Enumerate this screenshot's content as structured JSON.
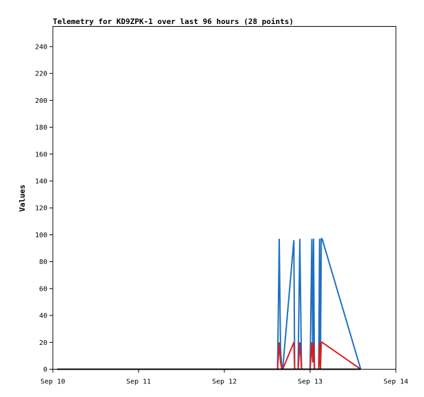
{
  "chart_data": {
    "type": "line",
    "title": "Telemetry for KD9ZPK-1 over last 96 hours (28 points)",
    "xlabel": "",
    "ylabel": "Values",
    "x_ticks": [
      "Sep 10",
      "Sep 11",
      "Sep 12",
      "Sep 13",
      "Sep 14"
    ],
    "xlim": [
      0,
      4
    ],
    "ylim": [
      0,
      255
    ],
    "y_ticks": [
      0,
      20,
      40,
      60,
      80,
      100,
      120,
      140,
      160,
      180,
      200,
      220,
      240
    ],
    "grid": false,
    "x": [
      0.05,
      2.6,
      2.62,
      2.63,
      2.64,
      2.655,
      2.67,
      2.68,
      2.81,
      2.82,
      2.86,
      2.88,
      2.9,
      2.91,
      3.0,
      3.02,
      3.03,
      3.04,
      3.05,
      3.06,
      3.08,
      3.09,
      3.1,
      3.11,
      3.12,
      3.13,
      3.14,
      3.59
    ],
    "series": [
      {
        "color": "#1f6fbf",
        "values": [
          0,
          0,
          0,
          47,
          97,
          15,
          0,
          0,
          96,
          0,
          0,
          97,
          0,
          0,
          0,
          97,
          15,
          97,
          0,
          0,
          0,
          0,
          0,
          97,
          0,
          97,
          97,
          0
        ]
      },
      {
        "color": "#d42020",
        "values": [
          0,
          0,
          0,
          10,
          20,
          5,
          0,
          0,
          20,
          0,
          0,
          20,
          0,
          0,
          0,
          20,
          5,
          20,
          0,
          0,
          0,
          0,
          0,
          20,
          0,
          20,
          20,
          0
        ]
      },
      {
        "color": "#000000",
        "values": [
          0,
          0,
          0,
          0,
          0,
          0,
          0,
          0,
          0,
          0,
          0,
          0,
          0,
          0,
          0,
          0,
          0,
          0,
          0,
          0,
          0,
          0,
          0,
          0,
          0,
          0,
          0,
          0
        ]
      }
    ]
  }
}
